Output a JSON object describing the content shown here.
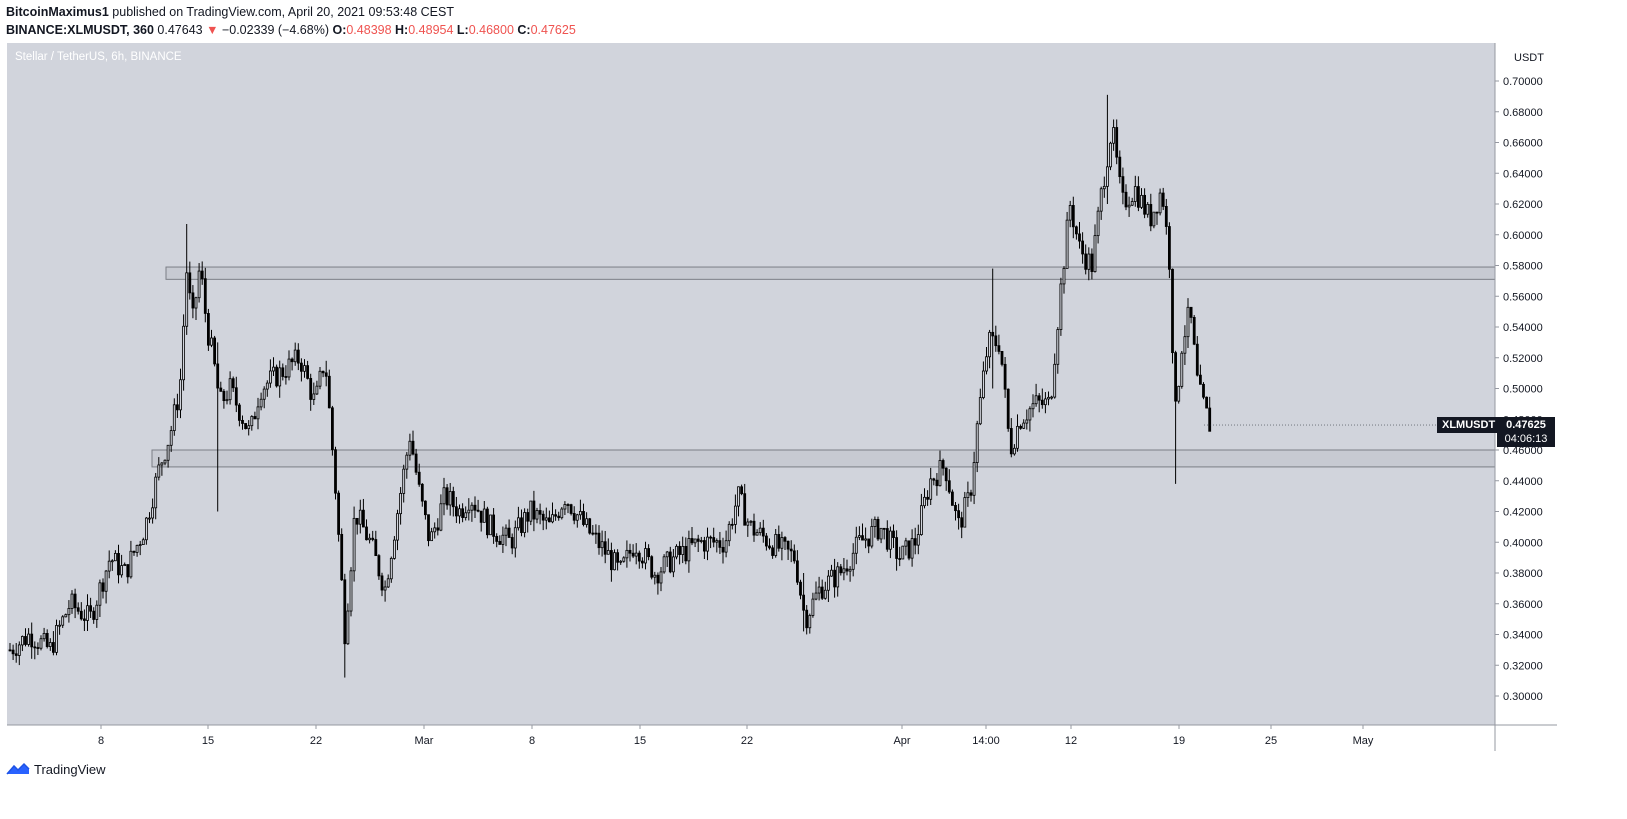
{
  "header": {
    "author": "BitcoinMaximus1",
    "published": "published on TradingView.com, April 20, 2021 09:53:48 CEST",
    "symbol": "BINANCE:XLMUSDT, 360",
    "last": "0.47643",
    "arrow": "▼",
    "change": "−0.02339 (−4.68%)",
    "o_label": "O:",
    "o_value": "0.48398",
    "h_label": "H:",
    "h_value": "0.48954",
    "l_label": "L:",
    "l_value": "0.46800",
    "c_label": "C:",
    "c_value": "0.47625"
  },
  "chart_title": "Stellar / TetherUS, 6h, BINANCE",
  "price_tag": {
    "ticker": "XLMUSDT",
    "price": "0.47625",
    "countdown": "04:06:13"
  },
  "footer": {
    "brand": "TradingView"
  },
  "colors": {
    "plot_bg": "#d1d4dc",
    "candle": "#000000",
    "zone_fill": "#c4c7cf",
    "text_dark": "#131722",
    "tv_blue": "#2962ff"
  },
  "chart_data": {
    "type": "candlestick",
    "title": "Stellar / TetherUS, 6h, BINANCE",
    "y_unit": "USDT",
    "ylim": [
      0.28,
      0.72
    ],
    "y_ticks": [
      "0.30000",
      "0.32000",
      "0.34000",
      "0.36000",
      "0.38000",
      "0.40000",
      "0.42000",
      "0.44000",
      "0.46000",
      "0.48000",
      "0.50000",
      "0.52000",
      "0.54000",
      "0.56000",
      "0.58000",
      "0.60000",
      "0.62000",
      "0.64000",
      "0.66000",
      "0.68000",
      "0.70000"
    ],
    "x_ticks": [
      "8",
      "15",
      "22",
      "Mar",
      "8",
      "15",
      "22",
      "Apr",
      "14:00",
      "12",
      "19",
      "25",
      "May"
    ],
    "resistance_zones": [
      [
        0.571,
        0.579
      ],
      [
        0.449,
        0.46
      ]
    ],
    "path_points": [
      [
        0,
        0.33
      ],
      [
        20,
        0.34
      ],
      [
        40,
        0.33
      ],
      [
        60,
        0.36
      ],
      [
        80,
        0.35
      ],
      [
        100,
        0.39
      ],
      [
        115,
        0.38
      ],
      [
        135,
        0.41
      ],
      [
        150,
        0.45
      ],
      [
        160,
        0.47
      ],
      [
        170,
        0.5
      ],
      [
        177,
        0.58
      ],
      [
        182,
        0.54
      ],
      [
        190,
        0.58
      ],
      [
        197,
        0.54
      ],
      [
        203,
        0.52
      ],
      [
        210,
        0.49
      ],
      [
        220,
        0.5
      ],
      [
        240,
        0.47
      ],
      [
        250,
        0.5
      ],
      [
        270,
        0.51
      ],
      [
        290,
        0.52
      ],
      [
        305,
        0.49
      ],
      [
        315,
        0.52
      ],
      [
        325,
        0.44
      ],
      [
        335,
        0.34
      ],
      [
        345,
        0.42
      ],
      [
        360,
        0.4
      ],
      [
        375,
        0.37
      ],
      [
        385,
        0.41
      ],
      [
        400,
        0.47
      ],
      [
        410,
        0.43
      ],
      [
        420,
        0.4
      ],
      [
        435,
        0.43
      ],
      [
        450,
        0.42
      ],
      [
        460,
        0.43
      ],
      [
        480,
        0.41
      ],
      [
        500,
        0.4
      ],
      [
        520,
        0.42
      ],
      [
        540,
        0.41
      ],
      [
        555,
        0.43
      ],
      [
        575,
        0.41
      ],
      [
        600,
        0.39
      ],
      [
        610,
        0.38
      ],
      [
        625,
        0.4
      ],
      [
        645,
        0.38
      ],
      [
        665,
        0.39
      ],
      [
        690,
        0.4
      ],
      [
        715,
        0.4
      ],
      [
        728,
        0.43
      ],
      [
        740,
        0.41
      ],
      [
        760,
        0.4
      ],
      [
        785,
        0.39
      ],
      [
        795,
        0.35
      ],
      [
        810,
        0.37
      ],
      [
        830,
        0.38
      ],
      [
        850,
        0.4
      ],
      [
        870,
        0.41
      ],
      [
        890,
        0.39
      ],
      [
        905,
        0.4
      ],
      [
        920,
        0.44
      ],
      [
        935,
        0.45
      ],
      [
        948,
        0.41
      ],
      [
        960,
        0.43
      ],
      [
        968,
        0.48
      ],
      [
        978,
        0.53
      ],
      [
        990,
        0.53
      ],
      [
        1000,
        0.46
      ],
      [
        1010,
        0.48
      ],
      [
        1025,
        0.49
      ],
      [
        1040,
        0.49
      ],
      [
        1050,
        0.56
      ],
      [
        1060,
        0.62
      ],
      [
        1070,
        0.59
      ],
      [
        1082,
        0.58
      ],
      [
        1092,
        0.63
      ],
      [
        1102,
        0.67
      ],
      [
        1112,
        0.62
      ],
      [
        1125,
        0.63
      ],
      [
        1140,
        0.61
      ],
      [
        1152,
        0.63
      ],
      [
        1160,
        0.58
      ],
      [
        1165,
        0.48
      ],
      [
        1172,
        0.53
      ],
      [
        1180,
        0.55
      ],
      [
        1188,
        0.5
      ],
      [
        1200,
        0.476
      ]
    ],
    "wick_extremes": [
      {
        "x": 178,
        "high": 0.607,
        "low": 0.54
      },
      {
        "x": 208,
        "high": 0.53,
        "low": 0.42
      },
      {
        "x": 335,
        "high": 0.37,
        "low": 0.312
      },
      {
        "x": 1098,
        "high": 0.691,
        "low": 0.62
      },
      {
        "x": 1165,
        "high": 0.5,
        "low": 0.438
      },
      {
        "x": 982,
        "high": 0.578,
        "low": 0.5
      },
      {
        "x": 795,
        "high": 0.38,
        "low": 0.342
      }
    ],
    "last_value": 0.47625
  }
}
